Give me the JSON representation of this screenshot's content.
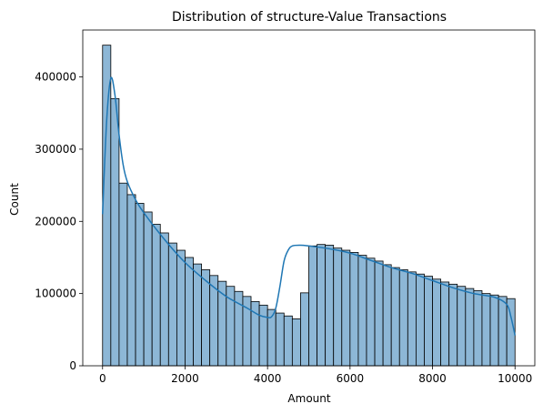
{
  "chart_data": {
    "type": "bar",
    "title": "Distribution of structure-Value Transactions",
    "xlabel": "Amount",
    "ylabel": "Count",
    "xlim": [
      -480,
      10480
    ],
    "ylim": [
      0,
      465000
    ],
    "xticks": [
      0,
      2000,
      4000,
      6000,
      8000,
      10000
    ],
    "yticks": [
      0,
      100000,
      200000,
      300000,
      400000
    ],
    "xtick_labels": [
      "0",
      "2000",
      "4000",
      "6000",
      "8000",
      "10000"
    ],
    "ytick_labels": [
      "0",
      "100000",
      "200000",
      "300000",
      "400000"
    ],
    "bin_width": 200,
    "bin_starts": [
      0,
      200,
      400,
      600,
      800,
      1000,
      1200,
      1400,
      1600,
      1800,
      2000,
      2200,
      2400,
      2600,
      2800,
      3000,
      3200,
      3400,
      3600,
      3800,
      4000,
      4200,
      4400,
      4600,
      4800,
      5000,
      5200,
      5400,
      5600,
      5800,
      6000,
      6200,
      6400,
      6600,
      6800,
      7000,
      7200,
      7400,
      7600,
      7800,
      8000,
      8200,
      8400,
      8600,
      8800,
      9000,
      9200,
      9400,
      9600,
      9800
    ],
    "values": [
      444000,
      370000,
      253000,
      237000,
      225000,
      213000,
      196000,
      184000,
      170000,
      160000,
      150000,
      141000,
      133000,
      125000,
      117000,
      110000,
      103000,
      96000,
      89000,
      84000,
      78000,
      73000,
      69000,
      65000,
      101000,
      166000,
      168000,
      167000,
      163000,
      160000,
      157000,
      153000,
      149000,
      145000,
      140000,
      136000,
      133000,
      130000,
      127000,
      124000,
      120000,
      116000,
      113000,
      110000,
      107000,
      104000,
      100000,
      98000,
      96000,
      93000
    ],
    "kde": {
      "x": [
        0,
        100,
        200,
        300,
        400,
        500,
        600,
        800,
        1000,
        1500,
        2000,
        2500,
        3000,
        3500,
        3800,
        4000,
        4100,
        4200,
        4300,
        4400,
        4500,
        4600,
        4800,
        5000,
        5500,
        6000,
        6500,
        7000,
        7500,
        8000,
        8500,
        9000,
        9500,
        9800,
        9900,
        10000
      ],
      "y": [
        210000,
        340000,
        398000,
        375000,
        320000,
        278000,
        255000,
        230000,
        212000,
        175000,
        143000,
        118000,
        96000,
        80000,
        70000,
        67000,
        68000,
        80000,
        110000,
        145000,
        160000,
        166000,
        167000,
        166000,
        162000,
        156000,
        146000,
        136000,
        128000,
        118000,
        108000,
        100000,
        95000,
        85000,
        68000,
        42000
      ]
    },
    "bar_fill": "#8db7d6",
    "bar_stroke": "#000000",
    "kde_color": "#1f77b4",
    "grid": false,
    "legend": "none"
  }
}
